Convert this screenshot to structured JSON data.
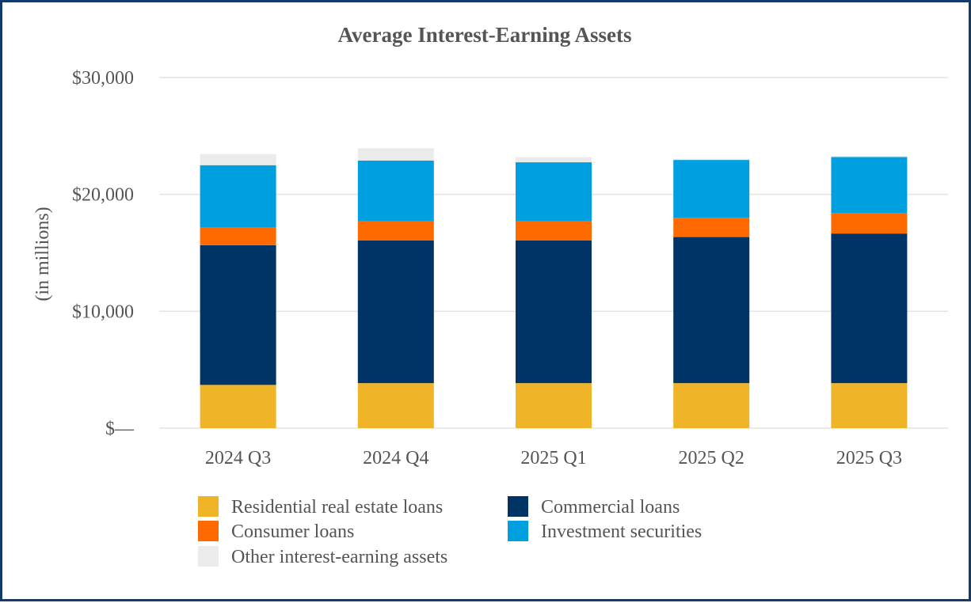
{
  "chart_data": {
    "type": "bar",
    "stacked": true,
    "title": "Average Interest-Earning Assets",
    "xlabel": "",
    "ylabel": "(in millions)",
    "ylim": [
      0,
      30000
    ],
    "yticks": [
      0,
      10000,
      20000,
      30000
    ],
    "ytick_labels": [
      "$—",
      "$10,000",
      "$20,000",
      "$30,000"
    ],
    "grid": true,
    "legend_position": "bottom",
    "categories": [
      "2024 Q3",
      "2024 Q4",
      "2025 Q1",
      "2025 Q2",
      "2025 Q3"
    ],
    "series": [
      {
        "name": "Residential real estate loans",
        "color": "#f0b429",
        "values": [
          3700,
          3850,
          3850,
          3850,
          3850
        ]
      },
      {
        "name": "Commercial loans",
        "color": "#003366",
        "values": [
          11950,
          12200,
          12200,
          12500,
          12800
        ]
      },
      {
        "name": "Consumer loans",
        "color": "#ff6a00",
        "values": [
          1550,
          1650,
          1650,
          1650,
          1750
        ]
      },
      {
        "name": "Investment securities",
        "color": "#009fdf",
        "values": [
          5300,
          5200,
          5050,
          4950,
          4800
        ]
      },
      {
        "name": "Other interest-earning assets",
        "color": "#ebebeb",
        "values": [
          950,
          1050,
          450,
          100,
          100
        ]
      }
    ],
    "legend_order": [
      0,
      1,
      2,
      3,
      4
    ]
  }
}
